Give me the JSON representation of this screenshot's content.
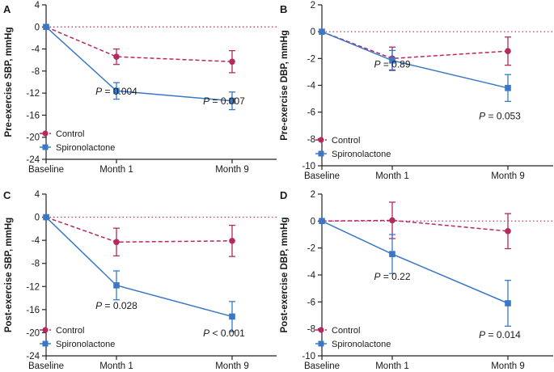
{
  "chart_data": [
    {
      "type": "line",
      "panel": "A",
      "ylabel": "Pre-exercise SBP, mmHg",
      "categories": [
        "Baseline",
        "Month 1",
        "Month 9"
      ],
      "ylim": [
        -24,
        4
      ],
      "yticks": [
        4,
        0,
        -4,
        -8,
        -12,
        -16,
        -20,
        -24
      ],
      "reference_line": 0,
      "series": [
        {
          "name": "Control",
          "color": "#b5295e",
          "dash": true,
          "marker": "circle",
          "values": [
            0,
            -5.4,
            -6.3
          ],
          "err": [
            0,
            1.4,
            2.0
          ]
        },
        {
          "name": "Spironolactone",
          "color": "#3a78c7",
          "dash": false,
          "marker": "square",
          "values": [
            0,
            -11.6,
            -13.4
          ],
          "err": [
            0,
            1.5,
            1.6
          ]
        }
      ],
      "pvalues": [
        {
          "category": "Month 1",
          "prefix": "P",
          "text": " = 0.004"
        },
        {
          "category": "Month 9",
          "prefix": "P",
          "text": " = 0.007"
        }
      ],
      "legend": "bottom-left"
    },
    {
      "type": "line",
      "panel": "B",
      "ylabel": "Pre-exercise DBP, mmHg",
      "categories": [
        "Baseline",
        "Month 1",
        "Month 9"
      ],
      "ylim": [
        -10,
        2
      ],
      "yticks": [
        2,
        0,
        -2,
        -4,
        -6,
        -8,
        -10
      ],
      "reference_line": 0,
      "series": [
        {
          "name": "Control",
          "color": "#b5295e",
          "dash": true,
          "marker": "circle",
          "values": [
            0,
            -2.0,
            -1.45
          ],
          "err": [
            0,
            0.85,
            1.05
          ]
        },
        {
          "name": "Spironolactone",
          "color": "#3a78c7",
          "dash": false,
          "marker": "square",
          "values": [
            0,
            -2.15,
            -4.2
          ],
          "err": [
            0,
            0.75,
            1.0
          ]
        }
      ],
      "pvalues": [
        {
          "category": "Month 1",
          "prefix": "P",
          "text": " = 0.89"
        },
        {
          "category": "Month 9",
          "prefix": "P",
          "text": " = 0.053"
        }
      ],
      "legend": "bottom-left"
    },
    {
      "type": "line",
      "panel": "C",
      "ylabel": "Post-exercise SBP, mmHg",
      "categories": [
        "Baseline",
        "Month 1",
        "Month 9"
      ],
      "ylim": [
        -24,
        4
      ],
      "yticks": [
        4,
        0,
        -4,
        -8,
        -12,
        -16,
        -20,
        -24
      ],
      "reference_line": 0,
      "series": [
        {
          "name": "Control",
          "color": "#b5295e",
          "dash": true,
          "marker": "circle",
          "values": [
            0,
            -4.3,
            -4.1
          ],
          "err": [
            0,
            2.4,
            2.7
          ]
        },
        {
          "name": "Spironolactone",
          "color": "#3a78c7",
          "dash": false,
          "marker": "square",
          "values": [
            0,
            -11.8,
            -17.2
          ],
          "err": [
            0,
            2.5,
            2.6
          ]
        }
      ],
      "pvalues": [
        {
          "category": "Month 1",
          "prefix": "P",
          "text": " = 0.028"
        },
        {
          "category": "Month 9",
          "prefix": "P",
          "text": " < 0.001"
        }
      ],
      "legend": "bottom-left"
    },
    {
      "type": "line",
      "panel": "D",
      "ylabel": "Post-exercise DBP, mmHg",
      "categories": [
        "Baseline",
        "Month 1",
        "Month 9"
      ],
      "ylim": [
        -10,
        2
      ],
      "yticks": [
        2,
        0,
        -2,
        -4,
        -6,
        -8,
        -10
      ],
      "reference_line": 0,
      "series": [
        {
          "name": "Control",
          "color": "#b5295e",
          "dash": true,
          "marker": "circle",
          "values": [
            0,
            0.05,
            -0.75
          ],
          "err": [
            0,
            1.35,
            1.3
          ]
        },
        {
          "name": "Spironolactone",
          "color": "#3a78c7",
          "dash": false,
          "marker": "square",
          "values": [
            0,
            -2.45,
            -6.1
          ],
          "err": [
            0,
            1.45,
            1.7
          ]
        }
      ],
      "pvalues": [
        {
          "category": "Month 1",
          "prefix": "P",
          "text": " = 0.22"
        },
        {
          "category": "Month 9",
          "prefix": "P",
          "text": " = 0.014"
        }
      ],
      "legend": "bottom-left"
    }
  ],
  "reference_line_color": "#b5295e"
}
